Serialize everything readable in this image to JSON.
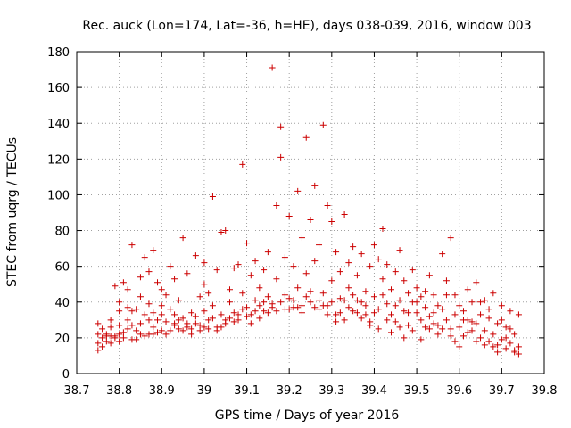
{
  "chart_data": {
    "type": "scatter",
    "title": "Rec. auck (Lon=174, Lat=-36, h=HE), days 038-039, 2016, window 003",
    "xlabel": "GPS time / Days of year 2016",
    "ylabel": "STEC from uqrg / TECUs",
    "xlim": [
      38.7,
      39.8
    ],
    "ylim": [
      0,
      180
    ],
    "x_ticks": [
      "38.7",
      "38.8",
      "38.9",
      "39",
      "39.1",
      "39.2",
      "39.3",
      "39.4",
      "39.5",
      "39.6",
      "39.7",
      "39.8"
    ],
    "y_ticks": [
      "0",
      "20",
      "40",
      "60",
      "80",
      "100",
      "120",
      "140",
      "160",
      "180"
    ],
    "grid": true,
    "marker": "+",
    "color": "#cc0000",
    "series": [
      {
        "points": [
          [
            38.75,
            13
          ],
          [
            38.75,
            17
          ],
          [
            38.75,
            22
          ],
          [
            38.75,
            28
          ],
          [
            38.76,
            15
          ],
          [
            38.76,
            20
          ],
          [
            38.77,
            18
          ],
          [
            38.77,
            22
          ],
          [
            38.78,
            17
          ],
          [
            38.78,
            21
          ],
          [
            38.78,
            26
          ],
          [
            38.79,
            20
          ],
          [
            38.79,
            49
          ],
          [
            38.8,
            18
          ],
          [
            38.8,
            22
          ],
          [
            38.8,
            35
          ],
          [
            38.8,
            40
          ],
          [
            38.81,
            51
          ],
          [
            38.81,
            23
          ],
          [
            38.82,
            30
          ],
          [
            38.82,
            37
          ],
          [
            38.82,
            47
          ],
          [
            38.83,
            19
          ],
          [
            38.83,
            27
          ],
          [
            38.83,
            72
          ],
          [
            38.84,
            24
          ],
          [
            38.84,
            36
          ],
          [
            38.85,
            28
          ],
          [
            38.85,
            43
          ],
          [
            38.85,
            54
          ],
          [
            38.86,
            33
          ],
          [
            38.86,
            65
          ],
          [
            38.87,
            22
          ],
          [
            38.87,
            39
          ],
          [
            38.87,
            57
          ],
          [
            38.88,
            26
          ],
          [
            38.88,
            34
          ],
          [
            38.88,
            69
          ],
          [
            38.89,
            30
          ],
          [
            38.89,
            51
          ],
          [
            38.9,
            24
          ],
          [
            38.9,
            38
          ],
          [
            38.9,
            47
          ],
          [
            38.91,
            29
          ],
          [
            38.91,
            44
          ],
          [
            38.92,
            36
          ],
          [
            38.92,
            60
          ],
          [
            38.93,
            27
          ],
          [
            38.93,
            33
          ],
          [
            38.93,
            53
          ],
          [
            38.94,
            25
          ],
          [
            38.94,
            41
          ],
          [
            38.95,
            31
          ],
          [
            38.95,
            76
          ],
          [
            38.96,
            28
          ],
          [
            38.96,
            56
          ],
          [
            38.97,
            34
          ],
          [
            38.97,
            22
          ],
          [
            38.98,
            32
          ],
          [
            38.98,
            66
          ],
          [
            38.99,
            43
          ],
          [
            38.99,
            27
          ],
          [
            39.0,
            35
          ],
          [
            39.0,
            50
          ],
          [
            39.0,
            62
          ],
          [
            39.01,
            30
          ],
          [
            39.01,
            45
          ],
          [
            39.02,
            38
          ],
          [
            39.02,
            99
          ],
          [
            39.03,
            26
          ],
          [
            39.03,
            58
          ],
          [
            39.04,
            33
          ],
          [
            39.04,
            79
          ],
          [
            39.05,
            80
          ],
          [
            39.05,
            30
          ],
          [
            39.06,
            40
          ],
          [
            39.06,
            47
          ],
          [
            39.07,
            29
          ],
          [
            39.07,
            59
          ],
          [
            39.08,
            33
          ],
          [
            39.08,
            61
          ],
          [
            39.09,
            117
          ],
          [
            39.09,
            45
          ],
          [
            39.1,
            37
          ],
          [
            39.1,
            73
          ],
          [
            39.11,
            55
          ],
          [
            39.11,
            28
          ],
          [
            39.12,
            41
          ],
          [
            39.12,
            63
          ],
          [
            39.13,
            31
          ],
          [
            39.13,
            48
          ],
          [
            39.14,
            35
          ],
          [
            39.14,
            58
          ],
          [
            39.15,
            43
          ],
          [
            39.15,
            68
          ],
          [
            39.16,
            171
          ],
          [
            39.16,
            39
          ],
          [
            39.17,
            94
          ],
          [
            39.17,
            53
          ],
          [
            39.18,
            138
          ],
          [
            39.18,
            121
          ],
          [
            39.19,
            36
          ],
          [
            39.19,
            65
          ],
          [
            39.2,
            88
          ],
          [
            39.2,
            42
          ],
          [
            39.21,
            60
          ],
          [
            39.21,
            37
          ],
          [
            39.22,
            102
          ],
          [
            39.22,
            48
          ],
          [
            39.23,
            76
          ],
          [
            39.23,
            38
          ],
          [
            39.24,
            132
          ],
          [
            39.24,
            56
          ],
          [
            39.25,
            86
          ],
          [
            39.25,
            40
          ],
          [
            39.26,
            105
          ],
          [
            39.26,
            63
          ],
          [
            39.27,
            72
          ],
          [
            39.27,
            36
          ],
          [
            39.28,
            139
          ],
          [
            39.28,
            45
          ],
          [
            39.29,
            94
          ],
          [
            39.29,
            38
          ],
          [
            39.3,
            85
          ],
          [
            39.3,
            52
          ],
          [
            39.31,
            68
          ],
          [
            39.31,
            33
          ],
          [
            39.32,
            57
          ],
          [
            39.32,
            42
          ],
          [
            39.33,
            89
          ],
          [
            39.33,
            30
          ],
          [
            39.34,
            62
          ],
          [
            39.34,
            48
          ],
          [
            39.35,
            71
          ],
          [
            39.35,
            35
          ],
          [
            39.36,
            41
          ],
          [
            39.36,
            55
          ],
          [
            39.37,
            67
          ],
          [
            39.37,
            31
          ],
          [
            39.38,
            46
          ],
          [
            39.38,
            38
          ],
          [
            39.39,
            60
          ],
          [
            39.39,
            29
          ],
          [
            39.4,
            72
          ],
          [
            39.4,
            43
          ],
          [
            39.41,
            64
          ],
          [
            39.41,
            36
          ],
          [
            39.42,
            53
          ],
          [
            39.42,
            81
          ],
          [
            39.43,
            39
          ],
          [
            39.43,
            61
          ],
          [
            39.44,
            33
          ],
          [
            39.44,
            47
          ],
          [
            39.45,
            57
          ],
          [
            39.45,
            29
          ],
          [
            39.46,
            69
          ],
          [
            39.46,
            41
          ],
          [
            39.47,
            52
          ],
          [
            39.47,
            35
          ],
          [
            39.48,
            45
          ],
          [
            39.48,
            27
          ],
          [
            39.49,
            40
          ],
          [
            39.49,
            58
          ],
          [
            39.5,
            34
          ],
          [
            39.5,
            48
          ],
          [
            39.51,
            30
          ],
          [
            39.51,
            43
          ],
          [
            39.52,
            37
          ],
          [
            39.52,
            26
          ],
          [
            39.53,
            55
          ],
          [
            39.53,
            32
          ],
          [
            39.54,
            28
          ],
          [
            39.54,
            44
          ],
          [
            39.55,
            38
          ],
          [
            39.55,
            22
          ],
          [
            39.56,
            36
          ],
          [
            39.56,
            67
          ],
          [
            39.57,
            30
          ],
          [
            39.57,
            52
          ],
          [
            39.58,
            76
          ],
          [
            39.58,
            25
          ],
          [
            39.59,
            33
          ],
          [
            39.59,
            44
          ],
          [
            39.6,
            26
          ],
          [
            39.6,
            38
          ],
          [
            39.61,
            21
          ],
          [
            39.61,
            35
          ],
          [
            39.62,
            30
          ],
          [
            39.62,
            47
          ],
          [
            39.63,
            24
          ],
          [
            39.63,
            40
          ],
          [
            39.64,
            28
          ],
          [
            39.64,
            51
          ],
          [
            39.65,
            20
          ],
          [
            39.65,
            33
          ],
          [
            39.66,
            24
          ],
          [
            39.66,
            41
          ],
          [
            39.67,
            18
          ],
          [
            39.67,
            31
          ],
          [
            39.68,
            22
          ],
          [
            39.68,
            45
          ],
          [
            39.69,
            16
          ],
          [
            39.69,
            28
          ],
          [
            39.7,
            19
          ],
          [
            39.7,
            38
          ],
          [
            39.71,
            14
          ],
          [
            39.71,
            26
          ],
          [
            39.72,
            17
          ],
          [
            39.72,
            35
          ],
          [
            39.73,
            12
          ],
          [
            39.73,
            22
          ],
          [
            39.74,
            15
          ],
          [
            39.74,
            33
          ],
          [
            39.74,
            11
          ],
          [
            39.73,
            13
          ],
          [
            39.72,
            25
          ],
          [
            39.71,
            20
          ],
          [
            39.7,
            30
          ],
          [
            39.69,
            12
          ],
          [
            39.68,
            15
          ],
          [
            39.67,
            36
          ],
          [
            39.66,
            16
          ],
          [
            39.65,
            40
          ],
          [
            39.64,
            18
          ],
          [
            39.63,
            29
          ],
          [
            39.62,
            23
          ],
          [
            39.61,
            30
          ],
          [
            39.6,
            15
          ],
          [
            39.59,
            18
          ],
          [
            39.58,
            21
          ],
          [
            39.57,
            44
          ],
          [
            39.56,
            25
          ],
          [
            39.55,
            27
          ],
          [
            39.54,
            34
          ],
          [
            39.53,
            25
          ],
          [
            39.52,
            46
          ],
          [
            39.51,
            19
          ],
          [
            39.5,
            40
          ],
          [
            39.49,
            24
          ],
          [
            39.48,
            34
          ],
          [
            39.47,
            20
          ],
          [
            39.46,
            26
          ],
          [
            39.45,
            38
          ],
          [
            39.44,
            23
          ],
          [
            39.43,
            30
          ],
          [
            39.42,
            44
          ],
          [
            39.41,
            25
          ],
          [
            39.4,
            34
          ],
          [
            39.39,
            27
          ],
          [
            39.38,
            33
          ],
          [
            39.37,
            40
          ],
          [
            39.36,
            34
          ],
          [
            39.35,
            44
          ],
          [
            39.34,
            37
          ],
          [
            39.33,
            41
          ],
          [
            39.32,
            34
          ],
          [
            39.31,
            29
          ],
          [
            39.3,
            40
          ],
          [
            39.29,
            33
          ],
          [
            39.28,
            38
          ],
          [
            39.27,
            41
          ],
          [
            39.26,
            37
          ],
          [
            39.25,
            46
          ],
          [
            39.24,
            43
          ],
          [
            39.23,
            34
          ],
          [
            39.22,
            37
          ],
          [
            39.21,
            41
          ],
          [
            39.2,
            36
          ],
          [
            39.19,
            44
          ],
          [
            39.18,
            40
          ],
          [
            39.17,
            35
          ],
          [
            39.16,
            37
          ],
          [
            39.15,
            34
          ],
          [
            39.14,
            40
          ],
          [
            39.13,
            38
          ],
          [
            39.12,
            35
          ],
          [
            39.11,
            33
          ],
          [
            39.1,
            32
          ],
          [
            39.09,
            36
          ],
          [
            39.08,
            30
          ],
          [
            39.07,
            34
          ],
          [
            39.06,
            31
          ],
          [
            39.05,
            28
          ],
          [
            39.04,
            26
          ],
          [
            39.03,
            24
          ],
          [
            39.02,
            31
          ],
          [
            39.01,
            25
          ],
          [
            39.0,
            26
          ],
          [
            38.99,
            24
          ],
          [
            38.98,
            28
          ],
          [
            38.97,
            25
          ],
          [
            38.96,
            26
          ],
          [
            38.95,
            24
          ],
          [
            38.94,
            30
          ],
          [
            38.93,
            28
          ],
          [
            38.92,
            24
          ],
          [
            38.91,
            22
          ],
          [
            38.9,
            33
          ],
          [
            38.89,
            23
          ],
          [
            38.88,
            22
          ],
          [
            38.87,
            30
          ],
          [
            38.86,
            21
          ],
          [
            38.85,
            22
          ],
          [
            38.84,
            19
          ],
          [
            38.83,
            35
          ],
          [
            38.82,
            25
          ],
          [
            38.81,
            20
          ],
          [
            38.8,
            27
          ],
          [
            38.79,
            21
          ],
          [
            38.78,
            30
          ],
          [
            38.77,
            21
          ],
          [
            38.76,
            25
          ]
        ]
      }
    ]
  }
}
